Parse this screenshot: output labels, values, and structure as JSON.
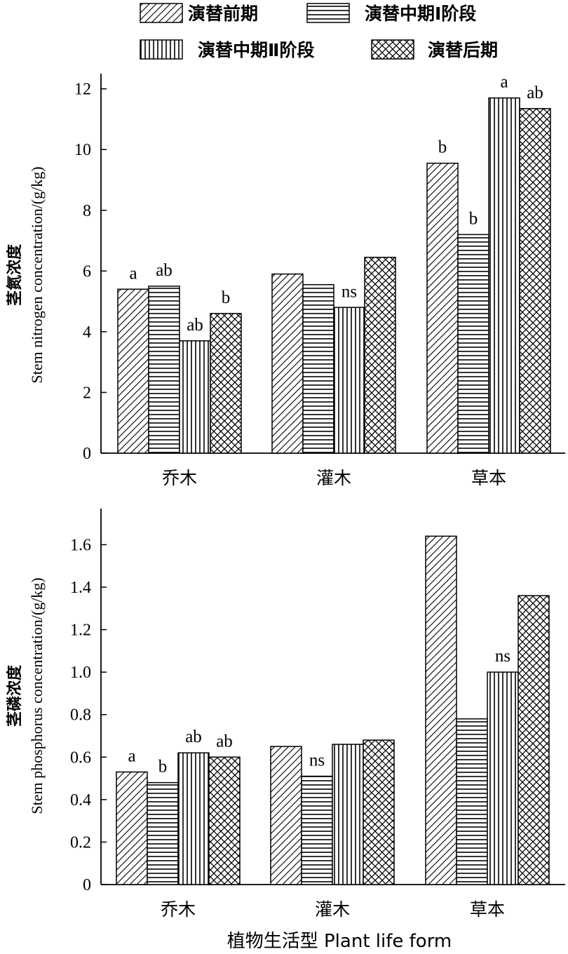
{
  "legend": {
    "items": [
      {
        "label": "演替前期",
        "pattern": "diag"
      },
      {
        "label": "演替中期Ⅰ阶段",
        "pattern": "horiz"
      },
      {
        "label": "演替中期Ⅱ阶段",
        "pattern": "vert"
      },
      {
        "label": "演替后期",
        "pattern": "cross"
      }
    ]
  },
  "xlabel": "植物生活型 Plant  life  form",
  "chart_data": [
    {
      "type": "bar",
      "ylabel_cn": "茎氮浓度",
      "ylabel_en": "Stem nitrogen concentration/(g/kg)",
      "categories": [
        "乔木",
        "灌木",
        "草本"
      ],
      "ylim": [
        0,
        12.5
      ],
      "yticks": [
        "0",
        "2",
        "4",
        "6",
        "8",
        "10",
        "12"
      ],
      "ytick_values": [
        0,
        2,
        4,
        6,
        8,
        10,
        12
      ],
      "series": [
        {
          "values": [
            5.4,
            5.9,
            9.55
          ]
        },
        {
          "values": [
            5.5,
            5.55,
            7.2
          ]
        },
        {
          "values": [
            3.7,
            4.8,
            11.7
          ]
        },
        {
          "values": [
            4.6,
            6.45,
            11.35
          ]
        }
      ],
      "annotations": [
        {
          "category": 0,
          "series": 0,
          "text": "a"
        },
        {
          "category": 0,
          "series": 1,
          "text": "ab"
        },
        {
          "category": 0,
          "series": 2,
          "text": "ab"
        },
        {
          "category": 0,
          "series": 3,
          "text": "b"
        },
        {
          "category": 1,
          "series": 2,
          "text": "ns"
        },
        {
          "category": 2,
          "series": 0,
          "text": "b"
        },
        {
          "category": 2,
          "series": 1,
          "text": "b"
        },
        {
          "category": 2,
          "series": 2,
          "text": "a"
        },
        {
          "category": 2,
          "series": 3,
          "text": "ab"
        }
      ],
      "grid": false
    },
    {
      "type": "bar",
      "ylabel_cn": "茎磷浓度",
      "ylabel_en": "Stem phosphorus concentration/(g/kg)",
      "categories": [
        "乔木",
        "灌木",
        "草本"
      ],
      "ylim": [
        0,
        1.77
      ],
      "yticks": [
        "0",
        "0.2",
        "0.4",
        "0.6",
        "0.8",
        "1.0",
        "1.2",
        "1.4",
        "1.6"
      ],
      "ytick_values": [
        0,
        0.2,
        0.4,
        0.6,
        0.8,
        1.0,
        1.2,
        1.4,
        1.6
      ],
      "series": [
        {
          "values": [
            0.53,
            0.65,
            1.64
          ]
        },
        {
          "values": [
            0.48,
            0.51,
            0.78
          ]
        },
        {
          "values": [
            0.62,
            0.66,
            1.0
          ]
        },
        {
          "values": [
            0.6,
            0.68,
            1.36
          ]
        }
      ],
      "annotations": [
        {
          "category": 0,
          "series": 0,
          "text": "a"
        },
        {
          "category": 0,
          "series": 1,
          "text": "b"
        },
        {
          "category": 0,
          "series": 2,
          "text": "ab"
        },
        {
          "category": 0,
          "series": 3,
          "text": "ab"
        },
        {
          "category": 1,
          "series": 1,
          "text": "ns"
        },
        {
          "category": 2,
          "series": 2,
          "text": "ns"
        }
      ],
      "grid": false
    }
  ]
}
